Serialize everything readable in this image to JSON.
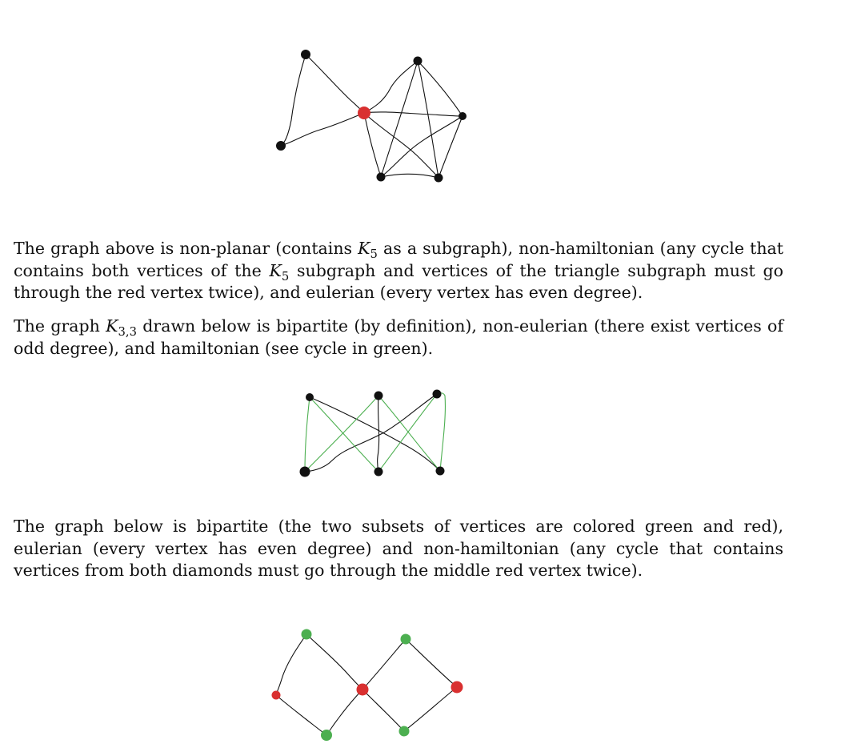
{
  "colors": {
    "edge": "#111111",
    "vertex_black": "#111111",
    "vertex_red": "#d93030",
    "vertex_green": "#4caf50",
    "cycle_green": "#4caf50"
  },
  "paragraphs": {
    "p1": {
      "before_k5_1": "The graph above is non-planar (contains ",
      "k5_1_sym": "K",
      "k5_1_sub": "5",
      "mid_1": " as a subgraph), non-hamiltonian (any cycle that contains both vertices of the ",
      "k5_2_sym": "K",
      "k5_2_sub": "5",
      "after_k5_2": " subgraph and vertices of the triangle subgraph must go through the red vertex twice), and eulerian (every vertex has even degree)."
    },
    "p2": {
      "before": "The graph ",
      "k33_sym": "K",
      "k33_sub": "3,3",
      "after": " drawn below is bipartite (by definition), non-eulerian (there exist vertices of odd degree), and hamiltonian (see cycle in green)."
    },
    "p3": {
      "text": "The graph below is bipartite (the two subsets of vertices are colored green and red), eulerian (every vertex has even degree) and non-hamiltonian (any cycle that contains vertices from both diamonds must go through the middle red vertex twice)."
    }
  }
}
